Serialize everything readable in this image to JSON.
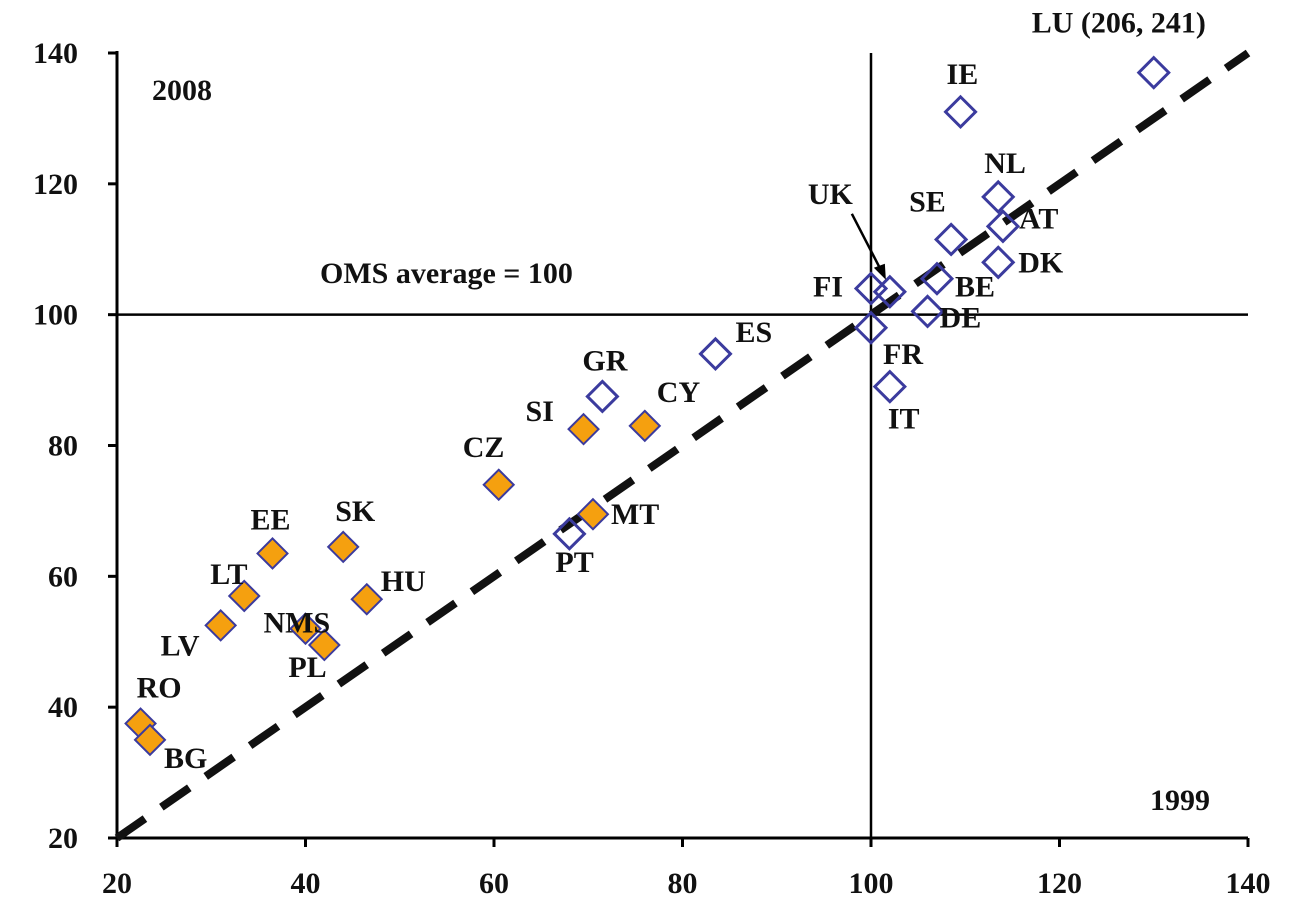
{
  "chart_data": {
    "type": "scatter",
    "corner_label_top": "2008",
    "corner_label_bottom": "1999",
    "reference_label": "OMS average = 100",
    "xlim": [
      20,
      140
    ],
    "ylim": [
      20,
      140
    ],
    "x_ticks": [
      20,
      40,
      60,
      80,
      100,
      120,
      140
    ],
    "y_ticks": [
      20,
      40,
      60,
      80,
      100,
      120,
      140
    ],
    "reference_x": 100,
    "reference_y": 100,
    "diagonal": true,
    "series": [
      {
        "marker": "filled-diamond",
        "color": "#f5a00f",
        "points": [
          {
            "label": "RO",
            "x": 22.5,
            "y": 37.5
          },
          {
            "label": "BG",
            "x": 23.5,
            "y": 35
          },
          {
            "label": "LV",
            "x": 31,
            "y": 52.5
          },
          {
            "label": "LT",
            "x": 33.5,
            "y": 57
          },
          {
            "label": "EE",
            "x": 36.5,
            "y": 63.5
          },
          {
            "label": "NMS",
            "x": 40,
            "y": 52
          },
          {
            "label": "PL",
            "x": 42,
            "y": 49.5
          },
          {
            "label": "SK",
            "x": 44,
            "y": 64.5
          },
          {
            "label": "HU",
            "x": 46.5,
            "y": 56.5
          },
          {
            "label": "CZ",
            "x": 60.5,
            "y": 74
          },
          {
            "label": "SI",
            "x": 69.5,
            "y": 82.5
          },
          {
            "label": "MT",
            "x": 70.5,
            "y": 69.5
          },
          {
            "label": "CY",
            "x": 76,
            "y": 83
          }
        ]
      },
      {
        "marker": "open-diamond",
        "color": "#3b3b9e",
        "points": [
          {
            "label": "PT",
            "x": 68,
            "y": 66.5
          },
          {
            "label": "GR",
            "x": 71.5,
            "y": 87.5
          },
          {
            "label": "ES",
            "x": 83.5,
            "y": 94
          },
          {
            "label": "FR",
            "x": 100,
            "y": 98
          },
          {
            "label": "FI",
            "x": 100,
            "y": 104
          },
          {
            "label": "UK",
            "x": 102,
            "y": 103.5
          },
          {
            "label": "IT",
            "x": 102,
            "y": 89
          },
          {
            "label": "DE",
            "x": 106,
            "y": 100.5
          },
          {
            "label": "BE",
            "x": 107,
            "y": 105.5
          },
          {
            "label": "SE",
            "x": 108.5,
            "y": 111.5
          },
          {
            "label": "IE",
            "x": 109.5,
            "y": 131
          },
          {
            "label": "DK",
            "x": 113.5,
            "y": 108
          },
          {
            "label": "AT",
            "x": 114,
            "y": 113.5
          },
          {
            "label": "NL",
            "x": 113.5,
            "y": 118
          },
          {
            "label": "LU (206, 241)",
            "x": 130,
            "y": 137
          }
        ]
      }
    ]
  }
}
